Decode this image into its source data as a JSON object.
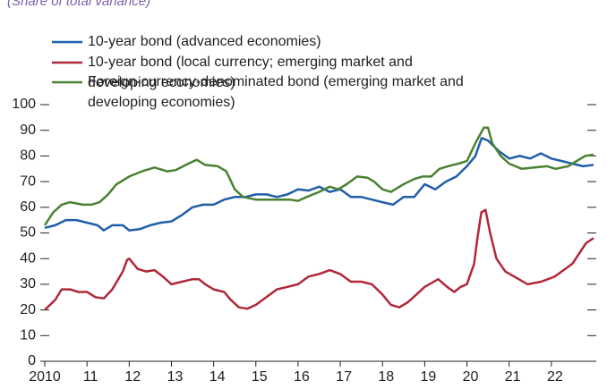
{
  "chart_data": {
    "type": "line",
    "subtitle": "(Share of total variance)",
    "xlim": [
      2010,
      2023
    ],
    "xticks": [
      {
        "value": 2010,
        "label": "2010"
      },
      {
        "value": 2011,
        "label": "11"
      },
      {
        "value": 2012,
        "label": "12"
      },
      {
        "value": 2013,
        "label": "13"
      },
      {
        "value": 2014,
        "label": "14"
      },
      {
        "value": 2015,
        "label": "15"
      },
      {
        "value": 2016,
        "label": "16"
      },
      {
        "value": 2017,
        "label": "17"
      },
      {
        "value": 2018,
        "label": "18"
      },
      {
        "value": 2019,
        "label": "19"
      },
      {
        "value": 2020,
        "label": "20"
      },
      {
        "value": 2021,
        "label": "21"
      },
      {
        "value": 2022,
        "label": "22"
      }
    ],
    "ylim": [
      0,
      100
    ],
    "yticks": [
      0,
      10,
      20,
      30,
      40,
      50,
      60,
      70,
      80,
      90,
      100
    ],
    "series": [
      {
        "name": "10-year bond (advanced economies)",
        "color": "#1f5fa8",
        "x": [
          2010.0,
          2010.25,
          2010.5,
          2010.75,
          2011.0,
          2011.25,
          2011.4,
          2011.6,
          2011.85,
          2012.0,
          2012.25,
          2012.5,
          2012.75,
          2013.0,
          2013.25,
          2013.5,
          2013.75,
          2014.0,
          2014.25,
          2014.5,
          2014.75,
          2015.0,
          2015.25,
          2015.5,
          2015.75,
          2016.0,
          2016.25,
          2016.5,
          2016.75,
          2017.0,
          2017.25,
          2017.5,
          2017.75,
          2018.0,
          2018.25,
          2018.5,
          2018.75,
          2019.0,
          2019.25,
          2019.5,
          2019.75,
          2020.0,
          2020.2,
          2020.35,
          2020.5,
          2020.75,
          2021.0,
          2021.25,
          2021.5,
          2021.75,
          2022.0,
          2022.25,
          2022.5,
          2022.75,
          2023.0
        ],
        "values": [
          52,
          53,
          55,
          55,
          54,
          53,
          51,
          53,
          53,
          51,
          51.5,
          53,
          54,
          54.5,
          57,
          60,
          61,
          61,
          63,
          64,
          64,
          65,
          65,
          64,
          65,
          67,
          66.5,
          68,
          66,
          67,
          64,
          64,
          63,
          62,
          61,
          64,
          64,
          69,
          67,
          70,
          72,
          76,
          80,
          87,
          86,
          82,
          79,
          80,
          79,
          81,
          79,
          78,
          77,
          76,
          76.5
        ]
      },
      {
        "name": "10-year bond (local currency; emerging market and developing economies)",
        "color": "#b0283a",
        "x": [
          2010.0,
          2010.25,
          2010.4,
          2010.6,
          2010.8,
          2011.0,
          2011.2,
          2011.4,
          2011.6,
          2011.85,
          2011.95,
          2012.0,
          2012.2,
          2012.4,
          2012.6,
          2012.8,
          2013.0,
          2013.25,
          2013.5,
          2013.65,
          2013.8,
          2014.0,
          2014.25,
          2014.4,
          2014.6,
          2014.8,
          2015.0,
          2015.25,
          2015.5,
          2015.75,
          2016.0,
          2016.25,
          2016.5,
          2016.75,
          2017.0,
          2017.25,
          2017.5,
          2017.75,
          2018.0,
          2018.2,
          2018.4,
          2018.6,
          2018.8,
          2019.0,
          2019.32,
          2019.53,
          2019.7,
          2019.85,
          2020.0,
          2020.17,
          2020.25,
          2020.34,
          2020.44,
          2020.55,
          2020.7,
          2020.91,
          2021.12,
          2021.44,
          2021.76,
          2022.08,
          2022.5,
          2022.82,
          2023.0
        ],
        "values": [
          20,
          24,
          28,
          28,
          27,
          27,
          25,
          24.5,
          28,
          35,
          39.5,
          40,
          36,
          35,
          35.5,
          33,
          30,
          31,
          32,
          32,
          30,
          28,
          27,
          24,
          21,
          20.5,
          22,
          25,
          28,
          29,
          30,
          33,
          34,
          35.5,
          34,
          31,
          31,
          30,
          26,
          22,
          21,
          23,
          26,
          29,
          32,
          29,
          27,
          29,
          30,
          38,
          48,
          58,
          59,
          50,
          40,
          35,
          33,
          30,
          31,
          33,
          38,
          46,
          48
        ]
      },
      {
        "name": "Foreign-currency-denominated bond (emerging market and developing economies)",
        "color": "#4a8232",
        "x": [
          2010.0,
          2010.2,
          2010.4,
          2010.6,
          2010.9,
          2011.1,
          2011.3,
          2011.5,
          2011.7,
          2012.0,
          2012.3,
          2012.6,
          2012.9,
          2013.1,
          2013.4,
          2013.6,
          2013.8,
          2014.1,
          2014.3,
          2014.5,
          2014.7,
          2015.0,
          2015.4,
          2015.8,
          2016.0,
          2016.2,
          2016.5,
          2016.75,
          2016.95,
          2017.15,
          2017.4,
          2017.65,
          2017.8,
          2018.0,
          2018.2,
          2018.5,
          2018.75,
          2018.95,
          2019.15,
          2019.35,
          2019.55,
          2019.8,
          2020.0,
          2020.2,
          2020.4,
          2020.5,
          2020.6,
          2020.8,
          2021.0,
          2021.3,
          2021.6,
          2021.9,
          2022.1,
          2022.4,
          2022.6,
          2022.8,
          2023.0
        ],
        "values": [
          53,
          58,
          61,
          62,
          61,
          61,
          62,
          65,
          69,
          72,
          74,
          75.5,
          74,
          74.5,
          77,
          78.5,
          76.5,
          76,
          74,
          67,
          64,
          63,
          63,
          63,
          62.5,
          64,
          66,
          68,
          67,
          69,
          72,
          71.5,
          70,
          67,
          66,
          69,
          71,
          72,
          72,
          75,
          76,
          77,
          78,
          85,
          91,
          91,
          85,
          80,
          77,
          75,
          75.5,
          76,
          75,
          76,
          78,
          80,
          80.5
        ]
      }
    ]
  }
}
